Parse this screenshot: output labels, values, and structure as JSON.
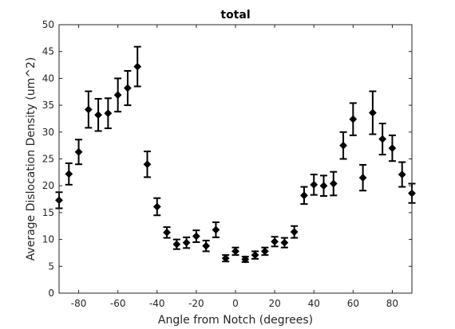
{
  "chart_data": {
    "type": "scatter",
    "title": "total",
    "xlabel": "Angle from Notch (degrees)",
    "ylabel": "Average Dislocation Density (um^2)",
    "xlim": [
      -90,
      90
    ],
    "ylim": [
      0,
      50
    ],
    "xticks": [
      -80,
      -60,
      -40,
      -20,
      0,
      20,
      40,
      60,
      80
    ],
    "yticks": [
      0,
      5,
      10,
      15,
      20,
      25,
      30,
      35,
      40,
      45,
      50
    ],
    "grid": false,
    "legend": "none",
    "marker": "diamond",
    "colors": {
      "marker": "#000000",
      "errorbar": "#000000",
      "axis": "#262626"
    },
    "series": [
      {
        "x": [
          -90,
          -85,
          -80,
          -75,
          -70,
          -65,
          -60,
          -55,
          -50,
          -45,
          -40,
          -35,
          -30,
          -25,
          -20,
          -15,
          -10,
          -5,
          0,
          5,
          10,
          15,
          20,
          25,
          30,
          35,
          40,
          45,
          50,
          55,
          60,
          65,
          70,
          75,
          80,
          85,
          90
        ],
        "y": [
          17.3,
          22.2,
          26.3,
          34.2,
          33.2,
          33.5,
          36.9,
          38.2,
          42.2,
          24.0,
          16.1,
          11.3,
          9.1,
          9.4,
          10.6,
          8.8,
          11.8,
          6.5,
          7.8,
          6.3,
          7.1,
          7.8,
          9.6,
          9.4,
          11.4,
          18.2,
          20.2,
          20.0,
          20.4,
          27.5,
          32.4,
          21.5,
          33.6,
          28.7,
          27.0,
          22.1,
          18.6
        ],
        "error": [
          1.5,
          2.0,
          2.3,
          3.4,
          3.0,
          2.8,
          3.1,
          3.2,
          3.7,
          2.4,
          1.6,
          1.0,
          0.9,
          1.0,
          1.1,
          1.0,
          1.4,
          0.6,
          0.7,
          0.5,
          0.7,
          0.7,
          0.9,
          0.9,
          1.1,
          1.6,
          1.9,
          1.9,
          2.2,
          2.5,
          3.0,
          2.4,
          4.0,
          2.9,
          2.4,
          2.3,
          1.8
        ]
      }
    ]
  }
}
